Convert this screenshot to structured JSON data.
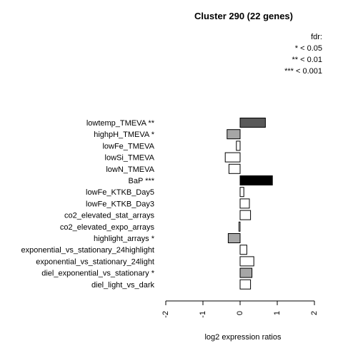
{
  "chart_data": {
    "type": "bar",
    "orientation": "horizontal",
    "title": "Cluster 290 (22 genes)",
    "xlabel": "log2 expression ratios",
    "xlim": [
      -2,
      2
    ],
    "xticks": [
      "-2",
      "-1",
      "0",
      "1",
      "2"
    ],
    "legend": {
      "placement": "top-right",
      "title": "fdr:",
      "entries": [
        "* < 0.05",
        "** < 0.01",
        "*** < 0.001"
      ]
    },
    "categories": [
      "lowtemp_TMEVA **",
      "highpH_TMEVA *",
      "lowFe_TMEVA",
      "lowSi_TMEVA",
      "lowN_TMEVA",
      "BaP ***",
      "lowFe_KTKB_Day5",
      "lowFe_KTKB_Day3",
      "co2_elevated_stat_arrays",
      "co2_elevated_expo_arrays",
      "highlight_arrays *",
      "exponential_vs_stationary_24highlight",
      "exponential_vs_stationary_24light",
      "diel_exponential_vs_stationary *",
      "diel_light_vs_dark"
    ],
    "values": [
      0.68,
      -0.35,
      -0.1,
      -0.4,
      -0.3,
      0.87,
      0.1,
      0.25,
      0.28,
      -0.03,
      -0.32,
      0.18,
      0.37,
      0.32,
      0.28
    ],
    "fill_colors": [
      "#595959",
      "#a6a6a6",
      "#ffffff",
      "#ffffff",
      "#ffffff",
      "#000000",
      "#ffffff",
      "#ffffff",
      "#ffffff",
      "#ffffff",
      "#a6a6a6",
      "#ffffff",
      "#ffffff",
      "#a6a6a6",
      "#ffffff"
    ]
  }
}
